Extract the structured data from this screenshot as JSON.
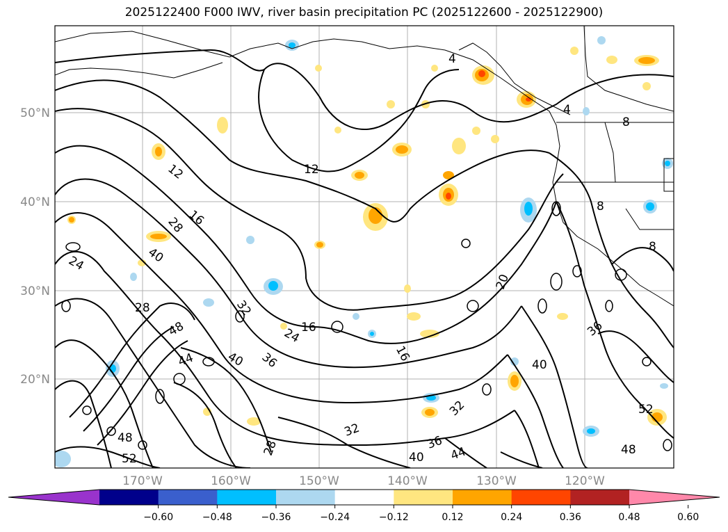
{
  "title": "2025122400 F000 IWV, river basin precipitation PC (2025122600 - 2025122900)",
  "lat_labels": [
    "50°N",
    "40°N",
    "30°N",
    "20°N"
  ],
  "lon_labels": [
    "170°W",
    "160°W",
    "150°W",
    "140°W",
    "130°W",
    "120°W"
  ],
  "contour_labels": [
    "12",
    "12",
    "16",
    "16",
    "16",
    "20",
    "24",
    "24",
    "28",
    "28",
    "28",
    "32",
    "32",
    "32",
    "36",
    "36",
    "36",
    "40",
    "40",
    "40",
    "40",
    "44",
    "44",
    "48",
    "48",
    "48",
    "52",
    "52",
    "4",
    "4",
    "8",
    "8",
    "8"
  ],
  "colorbar": {
    "ticks": [
      "−0.60",
      "−0.48",
      "−0.36",
      "−0.24",
      "−0.12",
      "0.12",
      "0.24",
      "0.36",
      "0.48",
      "0.60"
    ],
    "colors": [
      "#9933cc",
      "#00008b",
      "#3a5fcd",
      "#00bfff",
      "#add8f0",
      "#ffffff",
      "#ffe680",
      "#ffa500",
      "#ff4500",
      "#b22222",
      "#ff88aa"
    ]
  }
}
